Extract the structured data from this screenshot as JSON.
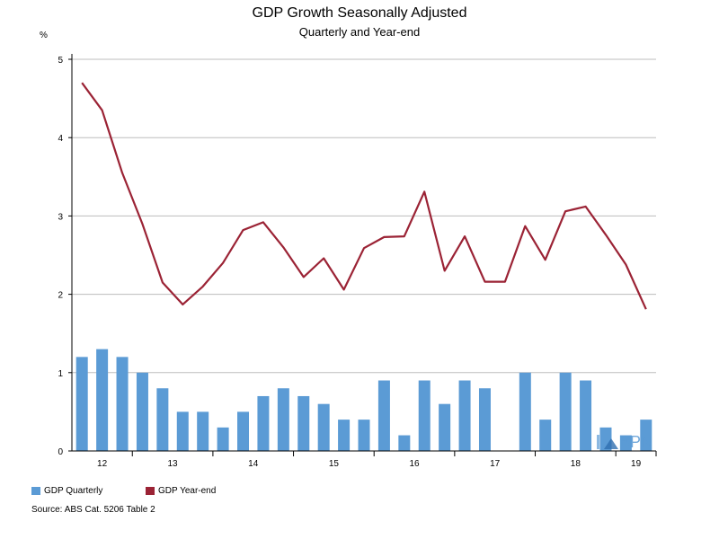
{
  "chart_data": {
    "type": "bar+line",
    "title": "GDP Growth Seasonally Adjusted",
    "subtitle": "Quarterly and Year-end",
    "ylabel": "%",
    "ylim": [
      0,
      5
    ],
    "yticks": [
      "0",
      "1",
      "2",
      "3",
      "4",
      "5"
    ],
    "grid": true,
    "year_labels": [
      "12",
      "13",
      "14",
      "15",
      "16",
      "17",
      "18",
      "19"
    ],
    "series": [
      {
        "name": "GDP Quarterly",
        "type": "bar",
        "color": "#5b9bd5",
        "values": [
          1.2,
          1.3,
          1.2,
          1.0,
          0.8,
          0.5,
          0.5,
          0.3,
          0.5,
          0.7,
          0.8,
          0.7,
          0.6,
          0.4,
          0.4,
          0.9,
          0.2,
          0.9,
          0.6,
          0.9,
          0.8,
          0.0,
          1.0,
          0.4,
          1.0,
          0.9,
          0.3,
          0.2,
          0.4
        ]
      },
      {
        "name": "GDP Year-end",
        "type": "line",
        "color": "#9b2335",
        "values": [
          4.7,
          4.35,
          3.55,
          2.9,
          2.15,
          1.87,
          2.1,
          2.4,
          2.82,
          2.92,
          2.6,
          2.22,
          2.46,
          2.06,
          2.59,
          2.73,
          2.74,
          3.31,
          2.3,
          2.74,
          2.16,
          2.16,
          2.87,
          2.44,
          3.06,
          3.12,
          2.76,
          2.38,
          1.81
        ]
      }
    ],
    "legend_position": "bottom-left",
    "source": "Source: ABS Cat. 5206 Table 2",
    "watermark": "BPN"
  }
}
